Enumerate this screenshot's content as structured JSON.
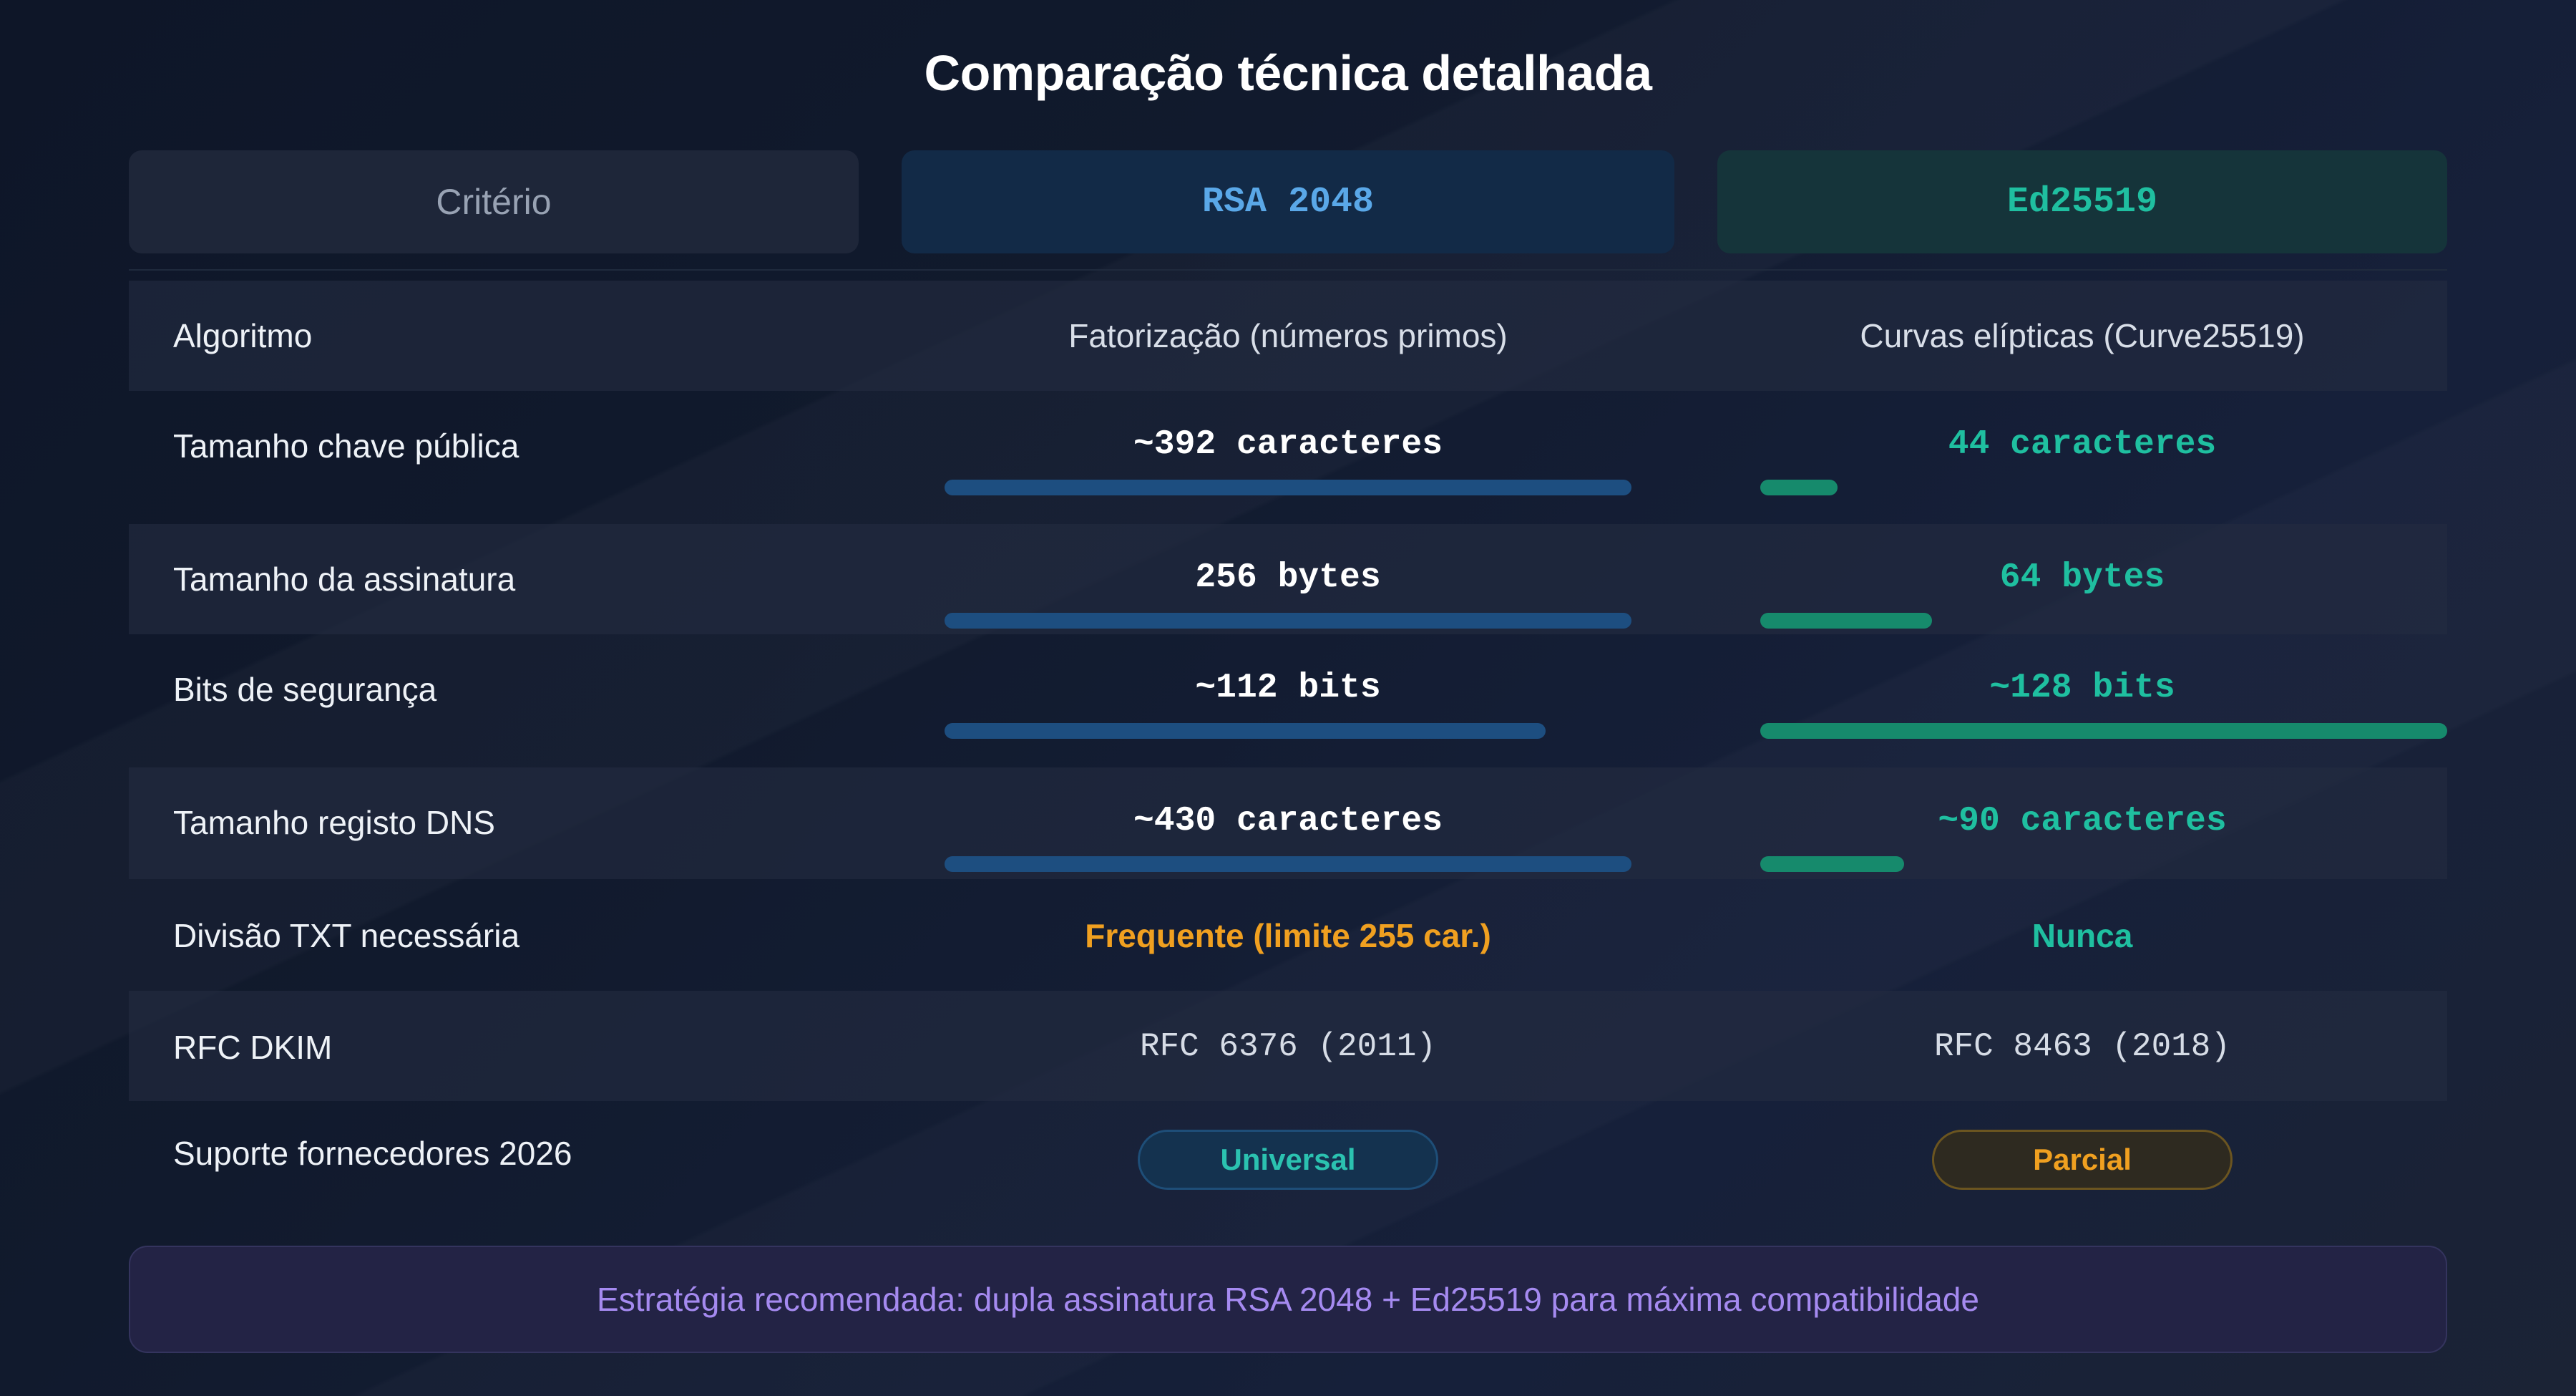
{
  "title": "Comparação técnica detalhada",
  "header": {
    "criterion": "Critério",
    "rsa": "RSA 2048",
    "ed": "Ed25519"
  },
  "rows": [
    {
      "label": "Algoritmo",
      "rsa": "Fatorização (números primos)",
      "ed": "Curvas elípticas (Curve25519)"
    },
    {
      "label": "Tamanho chave pública",
      "rsa": "~392 caracteres",
      "ed": "44 caracteres",
      "rsa_bar_level": 1.0,
      "ed_bar_level": 0.112
    },
    {
      "label": "Tamanho da assinatura",
      "rsa": "256 bytes",
      "ed": "64 bytes",
      "rsa_bar_level": 1.0,
      "ed_bar_level": 0.25
    },
    {
      "label": "Bits de segurança",
      "rsa": "~112 bits",
      "ed": "~128 bits",
      "rsa_bar_level": 0.875,
      "ed_bar_level": 1.0
    },
    {
      "label": "Tamanho registo DNS",
      "rsa": "~430 caracteres",
      "ed": "~90 caracteres",
      "rsa_bar_level": 1.0,
      "ed_bar_level": 0.209
    },
    {
      "label": "Divisão TXT necessária",
      "rsa": "Frequente (limite 255 car.)",
      "ed": "Nunca"
    },
    {
      "label": "RFC DKIM",
      "rsa": "RFC 6376 (2011)",
      "ed": "RFC 8463 (2018)"
    },
    {
      "label": "Suporte fornecedores 2026",
      "rsa": "Universal",
      "ed": "Parcial"
    }
  ],
  "banner": "Estratégia recomendada: dupla assinatura RSA 2048 + Ed25519 para máxima compatibilidade",
  "colors": {
    "rsa_bar": "#1d4e80",
    "ed_bar": "#168a6c",
    "accent_teal": "#1fbfa0",
    "accent_orange": "#f0a020",
    "banner_text": "#a58af0"
  }
}
